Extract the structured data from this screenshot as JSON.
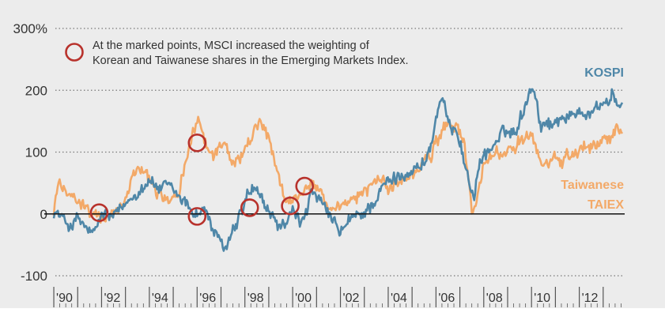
{
  "chart_data": {
    "type": "line",
    "title": "",
    "xlabel": "",
    "ylabel": "",
    "y_unit": "%",
    "x_range": [
      1989.8,
      2013.9
    ],
    "ylim": [
      -100,
      300
    ],
    "y_ticks": [
      {
        "value": 300,
        "label": "300%"
      },
      {
        "value": 200,
        "label": "200"
      },
      {
        "value": 100,
        "label": "100"
      },
      {
        "value": 0,
        "label": "0"
      },
      {
        "value": -100,
        "label": "-100"
      }
    ],
    "x_ticks": [
      {
        "value": 1990,
        "label": "'90"
      },
      {
        "value": 1992,
        "label": "'92"
      },
      {
        "value": 1994,
        "label": "'94"
      },
      {
        "value": 1996,
        "label": "'96"
      },
      {
        "value": 1998,
        "label": "'98"
      },
      {
        "value": 2000,
        "label": "'00"
      },
      {
        "value": 2002,
        "label": "'02"
      },
      {
        "value": 2004,
        "label": "'04"
      },
      {
        "value": 2006,
        "label": "'06"
      },
      {
        "value": 2008,
        "label": "'08"
      },
      {
        "value": 2010,
        "label": "'10"
      },
      {
        "value": 2012,
        "label": "'12"
      }
    ],
    "grid": "horizontal dotted",
    "zero_line": true,
    "legend": {
      "marker": "red-circle",
      "position": "top-left",
      "lines": [
        "At the marked points, MSCI increased the weighting of",
        "Korean and Taiwanese shares in the Emerging Markets Index."
      ]
    },
    "series": [
      {
        "name_lines": [
          "KOSPI"
        ],
        "label_position": "right",
        "color": "#4f87a8",
        "points": [
          [
            1990.0,
            5
          ],
          [
            1990.3,
            -5
          ],
          [
            1990.7,
            -20
          ],
          [
            1991.0,
            -8
          ],
          [
            1991.4,
            -25
          ],
          [
            1991.7,
            -35
          ],
          [
            1992.0,
            0
          ],
          [
            1992.4,
            -5
          ],
          [
            1992.8,
            5
          ],
          [
            1993.2,
            25
          ],
          [
            1993.6,
            40
          ],
          [
            1994.0,
            55
          ],
          [
            1994.4,
            40
          ],
          [
            1994.8,
            45
          ],
          [
            1995.2,
            30
          ],
          [
            1995.6,
            15
          ],
          [
            1995.8,
            5
          ],
          [
            1996.0,
            0
          ],
          [
            1996.3,
            10
          ],
          [
            1996.6,
            -20
          ],
          [
            1996.9,
            -45
          ],
          [
            1997.2,
            -55
          ],
          [
            1997.5,
            -30
          ],
          [
            1997.9,
            5
          ],
          [
            1998.1,
            30
          ],
          [
            1998.3,
            40
          ],
          [
            1998.6,
            30
          ],
          [
            1998.9,
            10
          ],
          [
            1999.2,
            -10
          ],
          [
            1999.5,
            -20
          ],
          [
            1999.8,
            -15
          ],
          [
            2000.0,
            5
          ],
          [
            2000.3,
            -15
          ],
          [
            2000.6,
            10
          ],
          [
            2000.8,
            35
          ],
          [
            2001.1,
            20
          ],
          [
            2001.5,
            0
          ],
          [
            2001.8,
            -20
          ],
          [
            2002.0,
            -30
          ],
          [
            2002.3,
            -15
          ],
          [
            2002.6,
            -5
          ],
          [
            2002.9,
            0
          ],
          [
            2003.2,
            10
          ],
          [
            2003.6,
            30
          ],
          [
            2003.9,
            50
          ],
          [
            2004.2,
            55
          ],
          [
            2004.6,
            65
          ],
          [
            2005.0,
            70
          ],
          [
            2005.3,
            75
          ],
          [
            2005.6,
            90
          ],
          [
            2005.9,
            125
          ],
          [
            2006.0,
            155
          ],
          [
            2006.2,
            185
          ],
          [
            2006.4,
            165
          ],
          [
            2006.6,
            135
          ],
          [
            2006.8,
            145
          ],
          [
            2007.0,
            120
          ],
          [
            2007.2,
            80
          ],
          [
            2007.4,
            50
          ],
          [
            2007.6,
            30
          ],
          [
            2007.8,
            75
          ],
          [
            2008.0,
            95
          ],
          [
            2008.3,
            105
          ],
          [
            2008.6,
            120
          ],
          [
            2008.9,
            135
          ],
          [
            2009.2,
            130
          ],
          [
            2009.5,
            150
          ],
          [
            2009.8,
            185
          ],
          [
            2010.0,
            210
          ],
          [
            2010.2,
            190
          ],
          [
            2010.4,
            135
          ],
          [
            2010.6,
            155
          ],
          [
            2010.9,
            140
          ],
          [
            2011.2,
            160
          ],
          [
            2011.6,
            155
          ],
          [
            2012.0,
            170
          ],
          [
            2012.4,
            160
          ],
          [
            2012.8,
            175
          ],
          [
            2013.1,
            180
          ],
          [
            2013.4,
            190
          ],
          [
            2013.7,
            175
          ],
          [
            2013.8,
            180
          ]
        ]
      },
      {
        "name_lines": [
          "Taiwanese",
          "TAIEX"
        ],
        "label_position": "right",
        "color": "#f3a968",
        "points": [
          [
            1990.0,
            0
          ],
          [
            1990.2,
            55
          ],
          [
            1990.5,
            40
          ],
          [
            1990.8,
            25
          ],
          [
            1991.1,
            15
          ],
          [
            1991.5,
            5
          ],
          [
            1991.8,
            -5
          ],
          [
            1992.0,
            -10
          ],
          [
            1992.3,
            5
          ],
          [
            1992.7,
            0
          ],
          [
            1993.0,
            30
          ],
          [
            1993.3,
            60
          ],
          [
            1993.6,
            80
          ],
          [
            1993.9,
            70
          ],
          [
            1994.2,
            40
          ],
          [
            1994.6,
            30
          ],
          [
            1995.0,
            25
          ],
          [
            1995.3,
            45
          ],
          [
            1995.6,
            90
          ],
          [
            1995.9,
            140
          ],
          [
            1996.0,
            155
          ],
          [
            1996.3,
            120
          ],
          [
            1996.6,
            95
          ],
          [
            1996.9,
            105
          ],
          [
            1997.2,
            110
          ],
          [
            1997.5,
            80
          ],
          [
            1997.8,
            90
          ],
          [
            1998.1,
            110
          ],
          [
            1998.4,
            135
          ],
          [
            1998.7,
            150
          ],
          [
            1999.0,
            120
          ],
          [
            1999.3,
            70
          ],
          [
            1999.6,
            30
          ],
          [
            2000.0,
            20
          ],
          [
            2000.3,
            30
          ],
          [
            2000.6,
            45
          ],
          [
            2000.9,
            50
          ],
          [
            2001.2,
            30
          ],
          [
            2001.5,
            15
          ],
          [
            2001.8,
            5
          ],
          [
            2002.2,
            10
          ],
          [
            2002.6,
            25
          ],
          [
            2003.0,
            35
          ],
          [
            2003.4,
            55
          ],
          [
            2003.8,
            50
          ],
          [
            2004.2,
            45
          ],
          [
            2004.6,
            55
          ],
          [
            2005.0,
            60
          ],
          [
            2005.4,
            80
          ],
          [
            2005.8,
            95
          ],
          [
            2006.2,
            130
          ],
          [
            2006.5,
            150
          ],
          [
            2006.8,
            140
          ],
          [
            2007.0,
            130
          ],
          [
            2007.2,
            110
          ],
          [
            2007.4,
            40
          ],
          [
            2007.5,
            5
          ],
          [
            2007.7,
            20
          ],
          [
            2008.0,
            80
          ],
          [
            2008.3,
            90
          ],
          [
            2008.7,
            100
          ],
          [
            2009.0,
            105
          ],
          [
            2009.4,
            110
          ],
          [
            2009.8,
            120
          ],
          [
            2010.0,
            125
          ],
          [
            2010.3,
            95
          ],
          [
            2010.5,
            70
          ],
          [
            2010.8,
            90
          ],
          [
            2011.2,
            85
          ],
          [
            2011.6,
            95
          ],
          [
            2012.0,
            100
          ],
          [
            2012.4,
            110
          ],
          [
            2012.8,
            115
          ],
          [
            2013.1,
            120
          ],
          [
            2013.4,
            130
          ],
          [
            2013.6,
            145
          ],
          [
            2013.8,
            130
          ]
        ]
      }
    ],
    "markers": [
      {
        "x": 1991.9,
        "y": 2
      },
      {
        "x": 1996.0,
        "y": 115
      },
      {
        "x": 1996.0,
        "y": -4
      },
      {
        "x": 1998.2,
        "y": 10
      },
      {
        "x": 1999.9,
        "y": 13
      },
      {
        "x": 2000.5,
        "y": 45
      }
    ],
    "colors": {
      "plot_background": "#ececec",
      "page_background": "#ffffff",
      "grid": "#777777",
      "zero_line": "#111111",
      "axis_text": "#333333",
      "marker_stroke": "#b8322c",
      "kospi_label": "#4f87a8",
      "taiex_label": "#f3a968"
    }
  }
}
